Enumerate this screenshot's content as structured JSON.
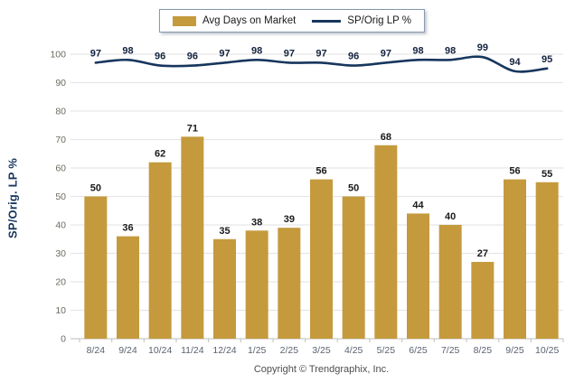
{
  "legend": {
    "bar_label": "Avg Days on Market",
    "line_label": "SP/Orig LP %"
  },
  "y_axis_title": "SP/Orig. LP %",
  "footer_text": "Copyright © Trendgraphix, Inc.",
  "colors": {
    "bar": "#c49a3d",
    "line": "#17365d",
    "grid": "#e6e6e6",
    "axis": "#c9c9c9",
    "bar_value_label": "#1a1a1a",
    "line_value_label": "#14233f",
    "y_tick_label": "#6e6a5f",
    "x_tick_label": "#5a6270"
  },
  "chart_data": {
    "type": "bar",
    "categories": [
      "8/24",
      "9/24",
      "10/24",
      "11/24",
      "12/24",
      "1/25",
      "2/25",
      "3/25",
      "4/25",
      "5/25",
      "6/25",
      "7/25",
      "8/25",
      "9/25",
      "10/25"
    ],
    "series": [
      {
        "name": "Avg Days on Market",
        "type": "bar",
        "values": [
          50,
          36,
          62,
          71,
          35,
          38,
          39,
          56,
          50,
          68,
          44,
          40,
          27,
          56,
          55
        ]
      },
      {
        "name": "SP/Orig LP %",
        "type": "line",
        "values": [
          97,
          98,
          96,
          96,
          97,
          98,
          97,
          97,
          96,
          97,
          98,
          98,
          99,
          94,
          95
        ]
      }
    ],
    "ylabel": "SP/Orig. LP %",
    "ylim": [
      0,
      100
    ],
    "ytick_step": 10,
    "grid": true,
    "legend_position": "top",
    "data_labels": true
  }
}
